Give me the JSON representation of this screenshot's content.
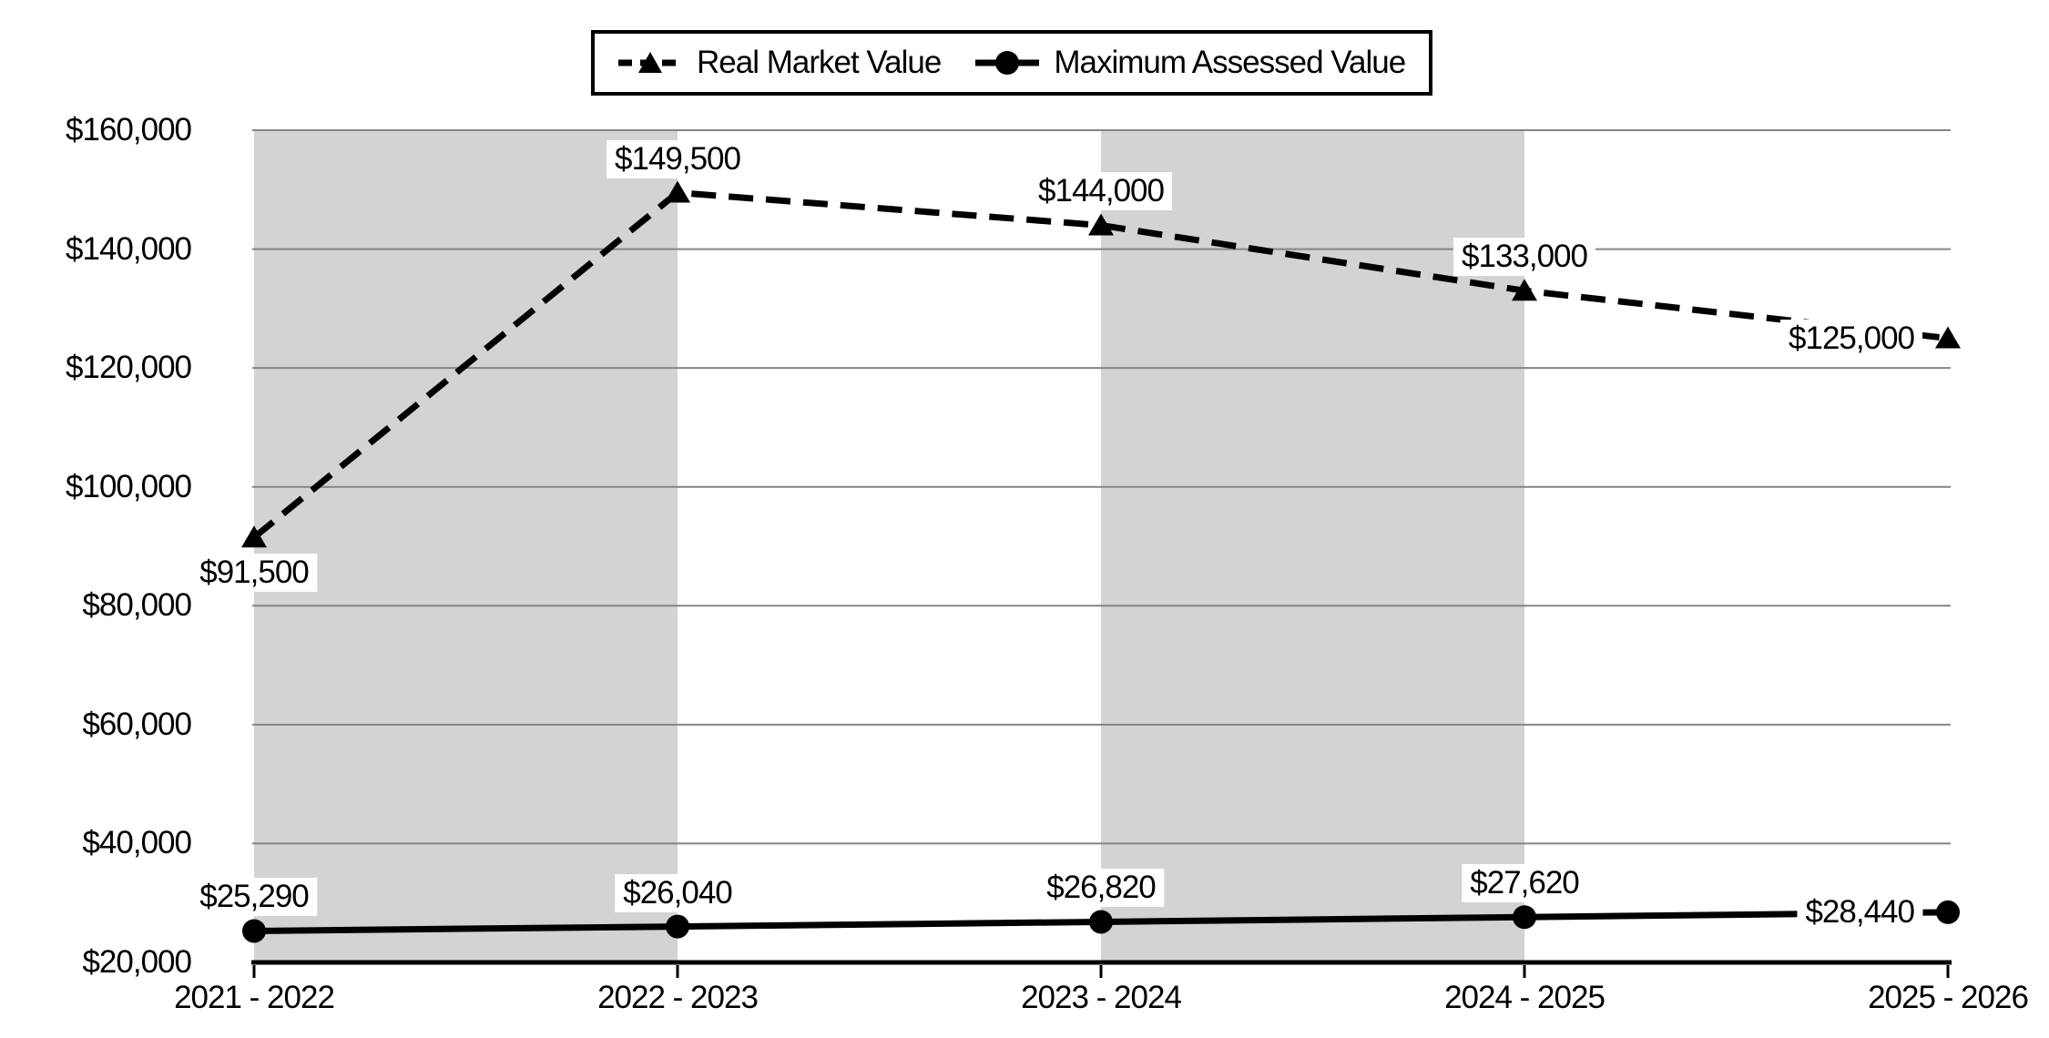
{
  "chart_data": {
    "type": "line",
    "title": "",
    "categories": [
      "2021 - 2022",
      "2022 - 2023",
      "2023 - 2024",
      "2024 - 2025",
      "2025 - 2026"
    ],
    "series": [
      {
        "name": "Real Market Value",
        "values": [
          91500,
          149500,
          144000,
          133000,
          125000
        ],
        "labels": [
          "$91,500",
          "$149,500",
          "$144,000",
          "$133,000",
          "$125,000"
        ],
        "label_positions": [
          "below",
          "above",
          "above",
          "above",
          "left"
        ],
        "line_style": "dashed",
        "marker": "triangle",
        "color": "#000000"
      },
      {
        "name": "Maximum Assessed Value",
        "values": [
          25290,
          26040,
          26820,
          27620,
          28440
        ],
        "labels": [
          "$25,290",
          "$26,040",
          "$26,820",
          "$27,620",
          "$28,440"
        ],
        "label_positions": [
          "above",
          "above",
          "above",
          "above",
          "left"
        ],
        "line_style": "solid",
        "marker": "circle",
        "color": "#000000"
      }
    ],
    "y_axis": {
      "min": 20000,
      "max": 160000,
      "step": 20000,
      "tick_labels": [
        "$20,000",
        "$40,000",
        "$60,000",
        "$80,000",
        "$100,000",
        "$120,000",
        "$140,000",
        "$160,000"
      ]
    },
    "x_axis": {
      "tick_labels": [
        "2021 - 2022",
        "2022 - 2023",
        "2023 - 2024",
        "2024 - 2025",
        "2025 - 2026"
      ]
    },
    "shaded_bands": [
      [
        0,
        1
      ],
      [
        2,
        3
      ]
    ],
    "legend": {
      "position": "top",
      "entries": [
        "Real Market Value",
        "Maximum Assessed Value"
      ]
    },
    "colors": {
      "band": "#d3d3d3",
      "gridline": "#858585",
      "axis": "#000000",
      "series": "#000000",
      "background": "#ffffff",
      "label_background": "#ffffff"
    },
    "grid": true
  }
}
